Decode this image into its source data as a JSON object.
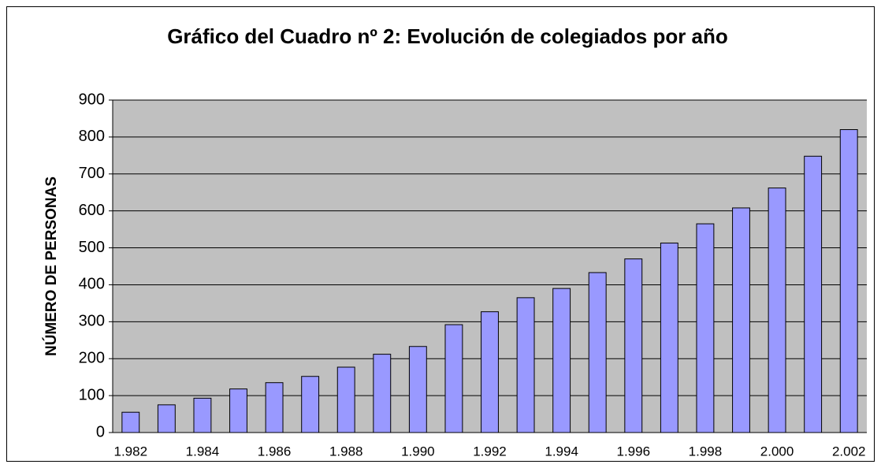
{
  "chart_data": {
    "type": "bar",
    "title": "Gráfico del Cuadro nº 2: Evolución de colegiados por año",
    "ylabel": "NÚMERO DE PERSONAS",
    "categories": [
      "1.982",
      null,
      "1.984",
      null,
      "1.986",
      null,
      "1.988",
      null,
      "1.990",
      null,
      "1.992",
      null,
      "1.994",
      null,
      "1.996",
      null,
      "1.998",
      null,
      "2.000",
      null,
      "2.002"
    ],
    "values": [
      55,
      75,
      93,
      118,
      135,
      152,
      177,
      212,
      233,
      292,
      327,
      365,
      390,
      433,
      470,
      513,
      565,
      608,
      662,
      748,
      820
    ],
    "color": "#9999ff",
    "ylim": [
      0,
      900
    ],
    "yticks": [
      0,
      100,
      200,
      300,
      400,
      500,
      600,
      700,
      800,
      900
    ],
    "grid": true
  }
}
